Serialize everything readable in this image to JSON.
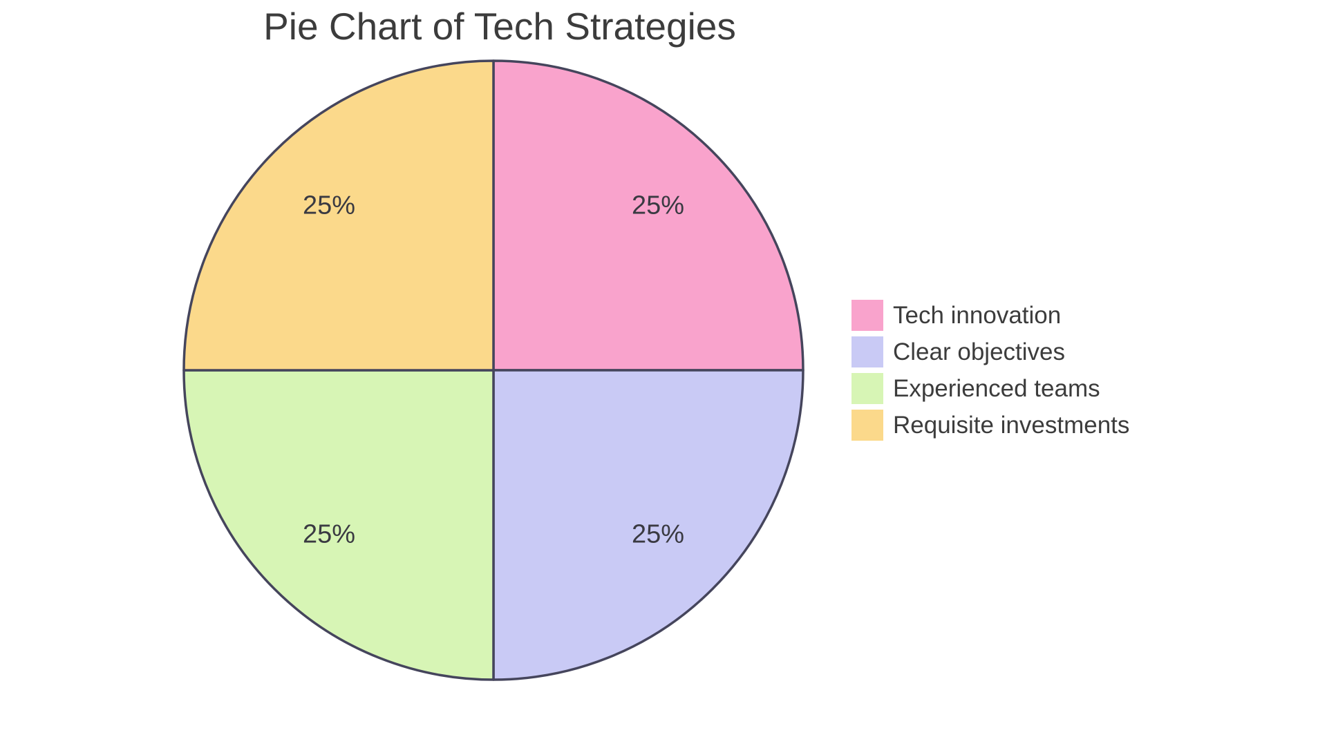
{
  "title": "Pie Chart of Tech Strategies",
  "chart_data": {
    "type": "pie",
    "title": "Pie Chart of Tech Strategies",
    "categories": [
      "Tech innovation",
      "Clear objectives",
      "Experienced teams",
      "Requisite investments"
    ],
    "values": [
      25,
      25,
      25,
      25
    ],
    "slice_labels": [
      "25%",
      "25%",
      "25%",
      "25%"
    ],
    "colors": [
      "#F9A3CC",
      "#C9CAF5",
      "#D7F5B5",
      "#FBD98B"
    ],
    "border_color": "#45455C",
    "text_color": "#3C3C3C",
    "start_angle_deg": 0,
    "direction": "clockwise",
    "legend_position": "right",
    "background_color": "#FFFFFF"
  },
  "legend": {
    "items": [
      {
        "label": "Tech innovation",
        "color": "#F9A3CC"
      },
      {
        "label": "Clear objectives",
        "color": "#C9CAF5"
      },
      {
        "label": "Experienced teams",
        "color": "#D7F5B5"
      },
      {
        "label": "Requisite investments",
        "color": "#FBD98B"
      }
    ]
  }
}
